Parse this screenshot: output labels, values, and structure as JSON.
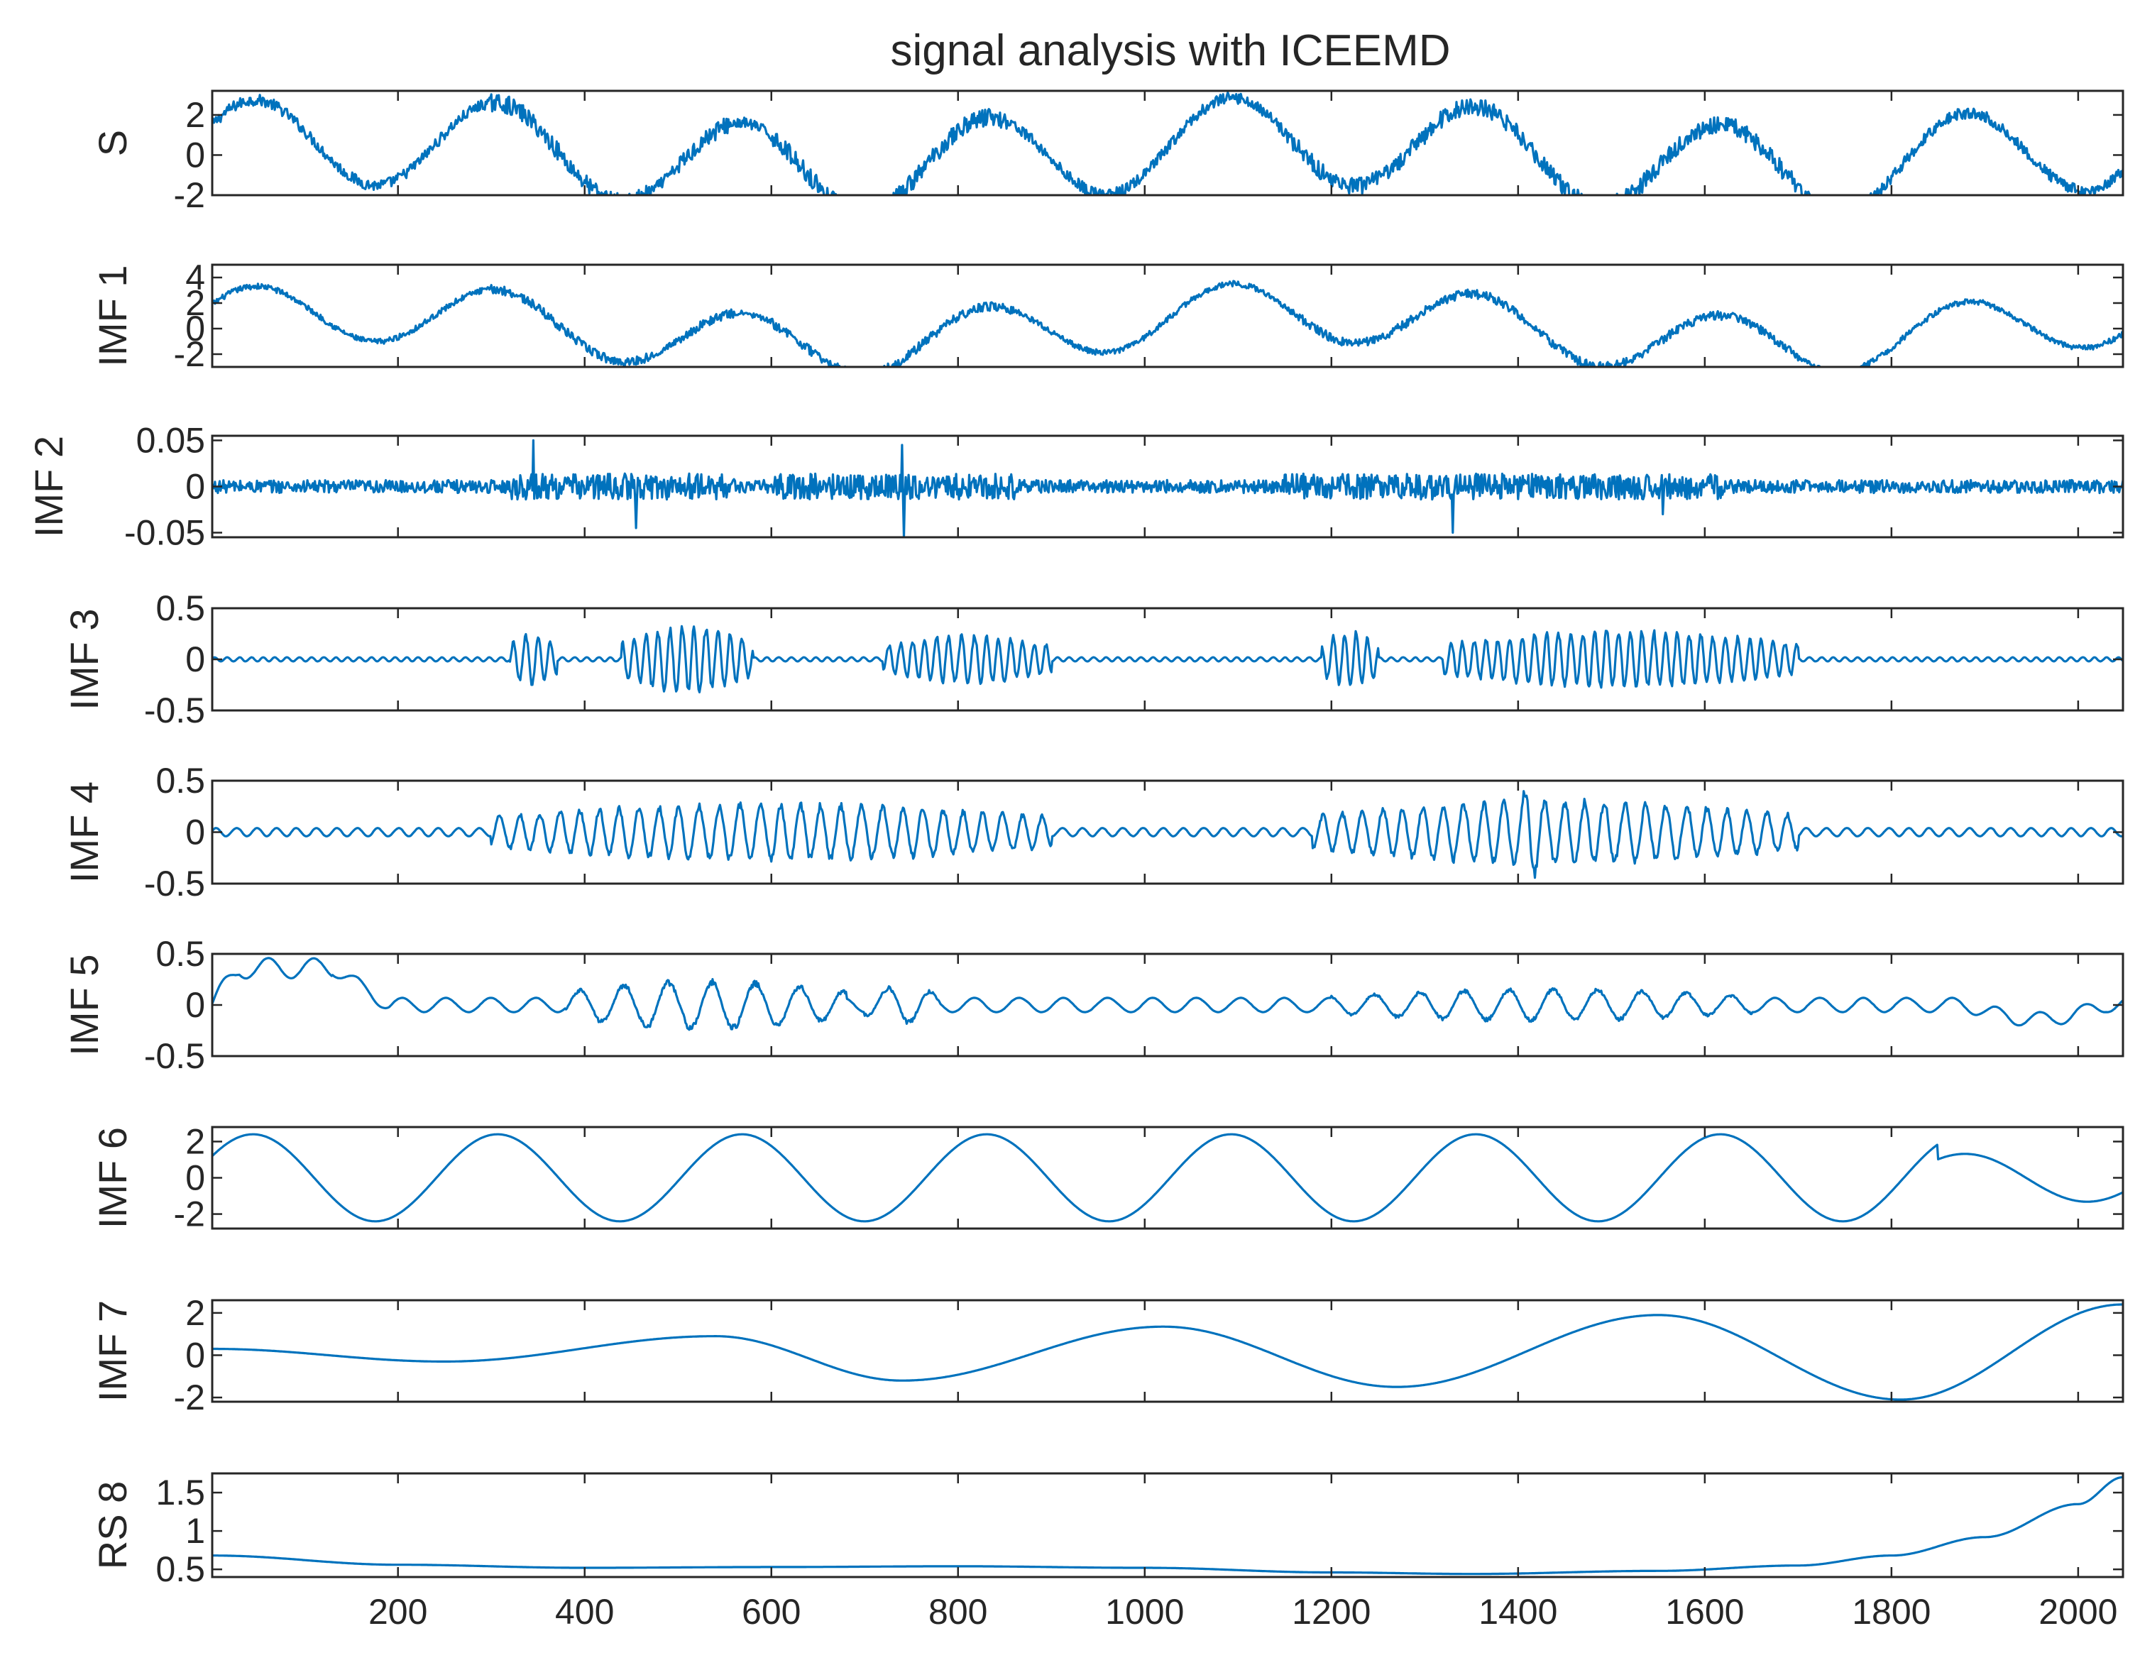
{
  "colors": {
    "line": "#0072BD",
    "axes": "#262626",
    "background": "#ffffff"
  },
  "chart_data": {
    "type": "line",
    "title": "signal analysis with ICEEMD",
    "x_range": [
      1,
      2048
    ],
    "x_ticks": [
      200,
      400,
      600,
      800,
      1000,
      1200,
      1400,
      1600,
      1800,
      2000
    ],
    "x_tick_labels": [
      "200",
      "400",
      "600",
      "800",
      "1000",
      "1200",
      "1400",
      "1600",
      "1800",
      "2000"
    ],
    "shared_x_axis": true,
    "xlabel": "",
    "panels": [
      {
        "name": "S",
        "ylabel": "S",
        "ylim": [
          -2,
          3.2
        ],
        "yticks": [
          -2,
          0,
          2
        ],
        "ytick_labels": [
          "-2",
          "0",
          "2"
        ],
        "model": {
          "components": [
            {
              "kind": "sine",
              "amp": 2.2,
              "period": 262,
              "phase": 0.5
            },
            {
              "kind": "sine",
              "amp": 0.7,
              "period": 1000,
              "phase": 0.6
            }
          ],
          "noise": 0.28,
          "noise_bursts": [
            [
              300,
              470
            ],
            [
              500,
              560
            ],
            [
              600,
              860
            ],
            [
              1150,
              1700
            ]
          ]
        }
      },
      {
        "name": "IMF 1",
        "ylabel": "IMF 1",
        "ylim": [
          -3,
          5
        ],
        "yticks": [
          -2,
          0,
          2,
          4
        ],
        "ytick_labels": [
          "-2",
          "0",
          "2",
          "4"
        ],
        "model": {
          "components": [
            {
              "kind": "sine",
              "amp": 2.3,
              "period": 262,
              "phase": 0.5
            },
            {
              "kind": "sine",
              "amp": 1.3,
              "period": 1000,
              "phase": 0.6
            }
          ],
          "noise": 0.22,
          "noise_bursts": [
            [
              300,
              470
            ],
            [
              500,
              560
            ],
            [
              600,
              860
            ],
            [
              1150,
              1700
            ]
          ]
        }
      },
      {
        "name": "IMF 2",
        "ylabel": "IMF 2",
        "ylim": [
          -0.055,
          0.055
        ],
        "yticks": [
          -0.05,
          0,
          0.05
        ],
        "ytick_labels": [
          "-0.05",
          "0",
          "0.05"
        ],
        "model": {
          "components": [],
          "noise": 0.007,
          "noise_bursts": [
            [
              320,
              560
            ],
            [
              600,
              860
            ],
            [
              1150,
              1620
            ]
          ],
          "burst_gain": 2.0,
          "spikes": [
            [
              345,
              0.05
            ],
            [
              455,
              -0.045
            ],
            [
              740,
              0.045
            ],
            [
              742,
              -0.055
            ],
            [
              1330,
              -0.05
            ],
            [
              1555,
              -0.03
            ]
          ]
        }
      },
      {
        "name": "IMF 3",
        "ylabel": "IMF 3",
        "ylim": [
          -0.5,
          0.5
        ],
        "yticks": [
          -0.5,
          0,
          0.5
        ],
        "ytick_labels": [
          "-0.5",
          "0",
          "0.5"
        ],
        "model": {
          "components": [],
          "osc_period": 13,
          "base": 0.02,
          "bursts": [
            [
              320,
              370,
              0.28
            ],
            [
              440,
              580,
              0.35
            ],
            [
              720,
              900,
              0.26
            ],
            [
              1190,
              1250,
              0.3
            ],
            [
              1320,
              1700,
              0.3
            ]
          ]
        }
      },
      {
        "name": "IMF 4",
        "ylabel": "IMF 4",
        "ylim": [
          -0.5,
          0.5
        ],
        "yticks": [
          -0.5,
          0,
          0.5
        ],
        "ytick_labels": [
          "-0.5",
          "0",
          "0.5"
        ],
        "model": {
          "components": [],
          "osc_period": 22,
          "base": 0.04,
          "bursts": [
            [
              300,
              900,
              0.3
            ],
            [
              1180,
              1700,
              0.33
            ],
            [
              1395,
              1430,
              0.48
            ]
          ]
        }
      },
      {
        "name": "IMF 5",
        "ylabel": "IMF 5",
        "ylim": [
          -0.5,
          0.5
        ],
        "yticks": [
          -0.5,
          0,
          0.5
        ],
        "ytick_labels": [
          "-0.5",
          "0",
          "0.5"
        ],
        "model": {
          "components": [],
          "osc_period": 48,
          "base": 0.07,
          "bursts": [
            [
              380,
              680,
              0.26
            ],
            [
              700,
              780,
              0.2
            ],
            [
              1200,
              1650,
              0.17
            ]
          ],
          "start_hump": [
            30,
            130,
            0.36
          ],
          "end_dip": [
            1880,
            2030,
            -0.14
          ]
        }
      },
      {
        "name": "IMF 6",
        "ylabel": "IMF 6",
        "ylim": [
          -2.8,
          2.8
        ],
        "yticks": [
          -2,
          0,
          2
        ],
        "ytick_labels": [
          "-2",
          "0",
          "2"
        ],
        "model": {
          "components": [
            {
              "kind": "sine",
              "amp": 2.4,
              "period": 262,
              "phase": 0.5
            }
          ],
          "noise": 0,
          "amp_mod": [
            [
              1850,
              2048,
              0.55
            ]
          ]
        }
      },
      {
        "name": "IMF 7",
        "ylabel": "IMF 7",
        "ylim": [
          -2.2,
          2.6
        ],
        "yticks": [
          -2,
          0,
          2
        ],
        "ytick_labels": [
          "-2",
          "0",
          "2"
        ],
        "model": {
          "components": [
            {
              "kind": "keyframes",
              "points": [
                [
                  1,
                  0.3
                ],
                [
                  250,
                  -0.3
                ],
                [
                  540,
                  0.9
                ],
                [
                  740,
                  -1.2
                ],
                [
                  1020,
                  1.35
                ],
                [
                  1270,
                  -1.5
                ],
                [
                  1550,
                  1.9
                ],
                [
                  1810,
                  -2.1
                ],
                [
                  2048,
                  2.4
                ]
              ]
            }
          ],
          "noise": 0
        }
      },
      {
        "name": "RS 8",
        "ylabel": "RS 8",
        "ylim": [
          0.4,
          1.75
        ],
        "yticks": [
          0.5,
          1,
          1.5
        ],
        "ytick_labels": [
          "0.5",
          "1",
          "1.5"
        ],
        "model": {
          "components": [
            {
              "kind": "keyframes",
              "points": [
                [
                  1,
                  0.68
                ],
                [
                  200,
                  0.56
                ],
                [
                  400,
                  0.52
                ],
                [
                  600,
                  0.53
                ],
                [
                  800,
                  0.54
                ],
                [
                  1000,
                  0.52
                ],
                [
                  1200,
                  0.46
                ],
                [
                  1350,
                  0.44
                ],
                [
                  1550,
                  0.48
                ],
                [
                  1700,
                  0.55
                ],
                [
                  1800,
                  0.68
                ],
                [
                  1900,
                  0.92
                ],
                [
                  2000,
                  1.35
                ],
                [
                  2048,
                  1.7
                ]
              ]
            }
          ],
          "noise": 0
        }
      }
    ]
  }
}
